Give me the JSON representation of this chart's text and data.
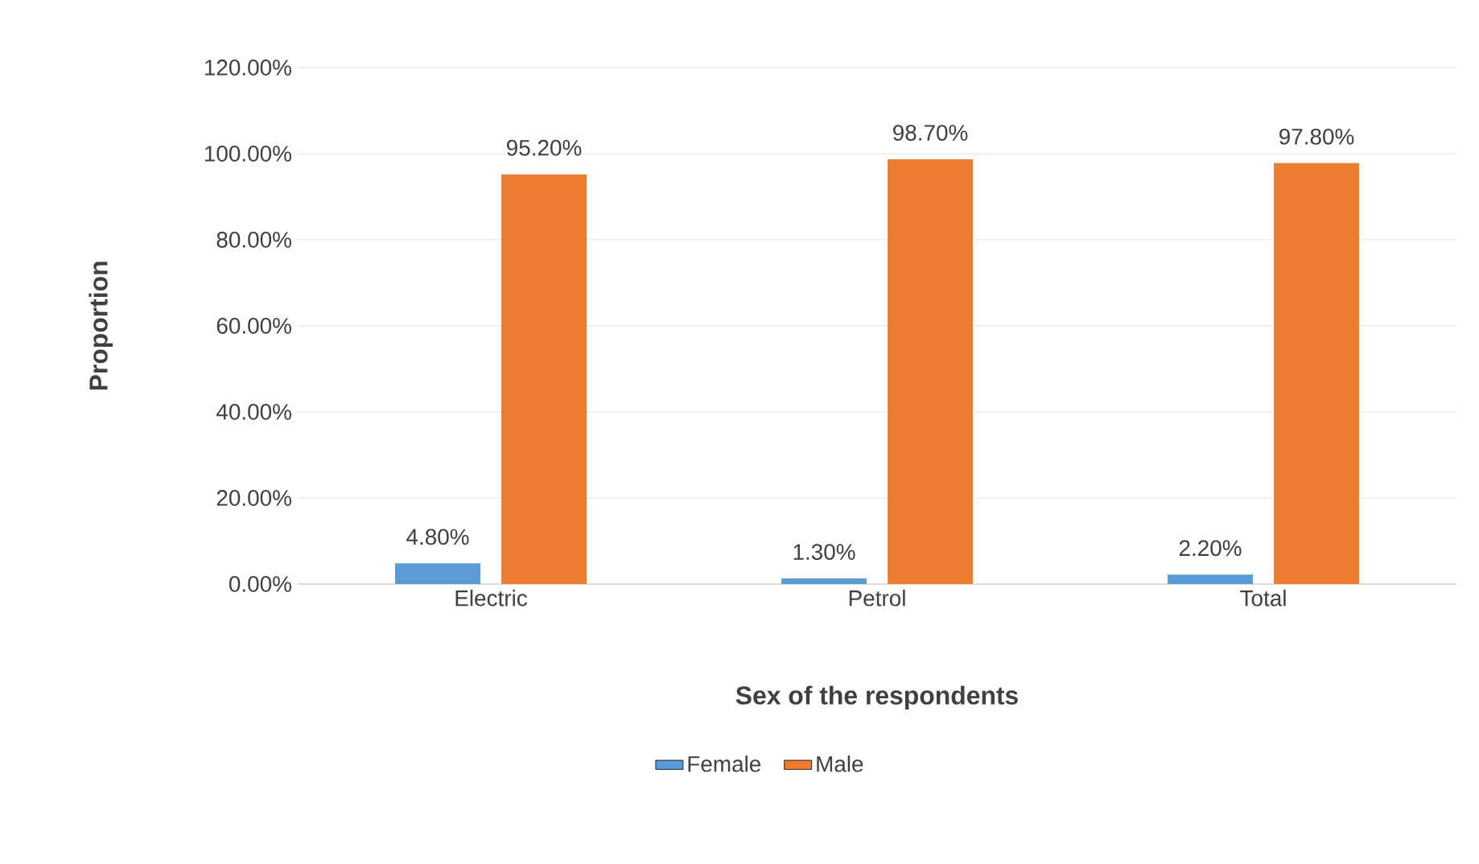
{
  "chart_data": {
    "type": "bar",
    "categories": [
      "Electric",
      "Petrol",
      "Total"
    ],
    "series": [
      {
        "name": "Female",
        "color": "#5b9bd5",
        "values": [
          4.8,
          1.3,
          2.2
        ],
        "value_labels": [
          "4.80%",
          "1.30%",
          "2.20%"
        ]
      },
      {
        "name": "Male",
        "color": "#ed7d31",
        "values": [
          95.2,
          98.7,
          97.8
        ],
        "value_labels": [
          "95.20%",
          "98.70%",
          "97.80%"
        ]
      }
    ],
    "xlabel": "Sex of the respondents",
    "ylabel": "Proportion",
    "ylim": [
      0,
      120
    ],
    "yticks": [
      {
        "value": 0,
        "label": "0.00%"
      },
      {
        "value": 20,
        "label": "20.00%"
      },
      {
        "value": 40,
        "label": "40.00%"
      },
      {
        "value": 60,
        "label": "60.00%"
      },
      {
        "value": 80,
        "label": "80.00%"
      },
      {
        "value": 100,
        "label": "100.00%"
      },
      {
        "value": 120,
        "label": "120.00%"
      }
    ],
    "grid": "y",
    "legend": "bottom"
  }
}
